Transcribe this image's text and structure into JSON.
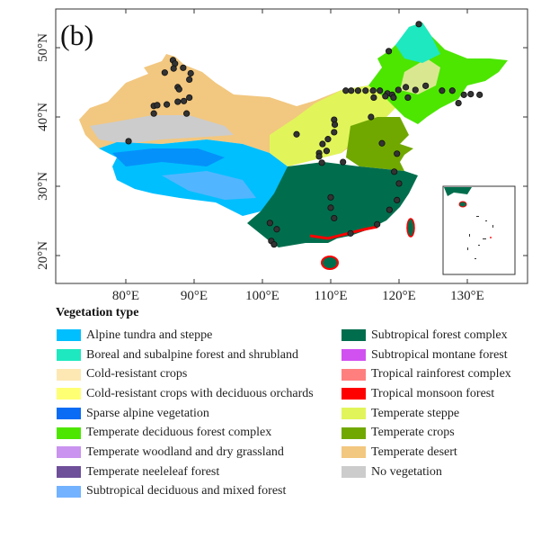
{
  "panel_label": "(b)",
  "x_ticks": [
    "80°E",
    "90°E",
    "100°E",
    "110°E",
    "120°E",
    "130°E"
  ],
  "y_ticks": [
    "50°N",
    "40°N",
    "30°N",
    "20°N"
  ],
  "legend_title": "Vegetation type",
  "legend_left": [
    {
      "label": "Alpine tundra and steppe",
      "color": "#00bfff"
    },
    {
      "label": "Boreal and subalpine forest and shrubland",
      "color": "#1ee8c0"
    },
    {
      "label": "Cold-resistant crops",
      "color": "#fde8b4"
    },
    {
      "label": "Cold-resistant crops with deciduous orchards",
      "color": "#ffff73"
    },
    {
      "label": "Sparse alpine vegetation",
      "color": "#0a6cf5"
    },
    {
      "label": "Temperate deciduous forest complex",
      "color": "#4ce600"
    },
    {
      "label": "Temperate woodland and dry grassland",
      "color": "#c993ef"
    },
    {
      "label": "Temperate neeleleaf forest",
      "color": "#6e4f9a"
    },
    {
      "label": "Subtropical deciduous and mixed forest",
      "color": "#73b2ff"
    }
  ],
  "legend_right": [
    {
      "label": "Subtropical forest complex",
      "color": "#006e4d"
    },
    {
      "label": "Subtropical montane forest",
      "color": "#d151f0"
    },
    {
      "label": "Tropical rainforest complex",
      "color": "#ff7f7f"
    },
    {
      "label": "Tropical monsoon forest",
      "color": "#ff0000"
    },
    {
      "label": "Temperate steppe",
      "color": "#e1f55a"
    },
    {
      "label": "Temperate crops",
      "color": "#70a800"
    },
    {
      "label": "Temperate desert",
      "color": "#f2c77f"
    },
    {
      "label": "No vegetation",
      "color": "#cccccc"
    }
  ],
  "sites_lonlat": [
    [
      122.9,
      53.4
    ],
    [
      118.5,
      49.5
    ],
    [
      86.9,
      48.2
    ],
    [
      87.2,
      47.7
    ],
    [
      88.4,
      47.1
    ],
    [
      87,
      47
    ],
    [
      85.7,
      46.4
    ],
    [
      89.5,
      46.3
    ],
    [
      89.3,
      45.4
    ],
    [
      87.6,
      44.3
    ],
    [
      87.8,
      44
    ],
    [
      84.1,
      41.6
    ],
    [
      84.6,
      41.7
    ],
    [
      86,
      41.8
    ],
    [
      87.6,
      42.2
    ],
    [
      88.5,
      42.3
    ],
    [
      89.3,
      42.8
    ],
    [
      84.1,
      40.5
    ],
    [
      88.9,
      40.5
    ],
    [
      80.4,
      36.5
    ],
    [
      105,
      37.5
    ],
    [
      112.2,
      43.8
    ],
    [
      113,
      43.8
    ],
    [
      114,
      43.8
    ],
    [
      115.1,
      43.8
    ],
    [
      116.2,
      43.8
    ],
    [
      117.2,
      43.8
    ],
    [
      118.3,
      43.4
    ],
    [
      119,
      43.2
    ],
    [
      119.9,
      43.9
    ],
    [
      121,
      44.3
    ],
    [
      122.4,
      43.9
    ],
    [
      123.9,
      44.5
    ],
    [
      126.3,
      43.8
    ],
    [
      127.8,
      43.8
    ],
    [
      129.5,
      43.2
    ],
    [
      130.5,
      43.3
    ],
    [
      131.8,
      43.2
    ],
    [
      128.7,
      42
    ],
    [
      116.3,
      42.8
    ],
    [
      121.3,
      42.8
    ],
    [
      118,
      43
    ],
    [
      119.2,
      42.8
    ],
    [
      115.9,
      40
    ],
    [
      110.5,
      39.6
    ],
    [
      110.6,
      38.9
    ],
    [
      110.5,
      37.8
    ],
    [
      109.6,
      36.8
    ],
    [
      108.8,
      36.1
    ],
    [
      109.4,
      35.1
    ],
    [
      108.3,
      34.8
    ],
    [
      108.3,
      34.3
    ],
    [
      108.7,
      33.4
    ],
    [
      111.8,
      33.5
    ],
    [
      117.5,
      36.2
    ],
    [
      119.7,
      34.7
    ],
    [
      119.3,
      32.1
    ],
    [
      120,
      30.4
    ],
    [
      110,
      28.4
    ],
    [
      110,
      26.9
    ],
    [
      110.5,
      25.4
    ],
    [
      119.7,
      28
    ],
    [
      118.6,
      26.6
    ],
    [
      116.8,
      24.5
    ],
    [
      112.9,
      23.2
    ],
    [
      101.1,
      24.7
    ],
    [
      102.1,
      23.8
    ],
    [
      101.3,
      22.1
    ],
    [
      101.7,
      21.6
    ]
  ]
}
